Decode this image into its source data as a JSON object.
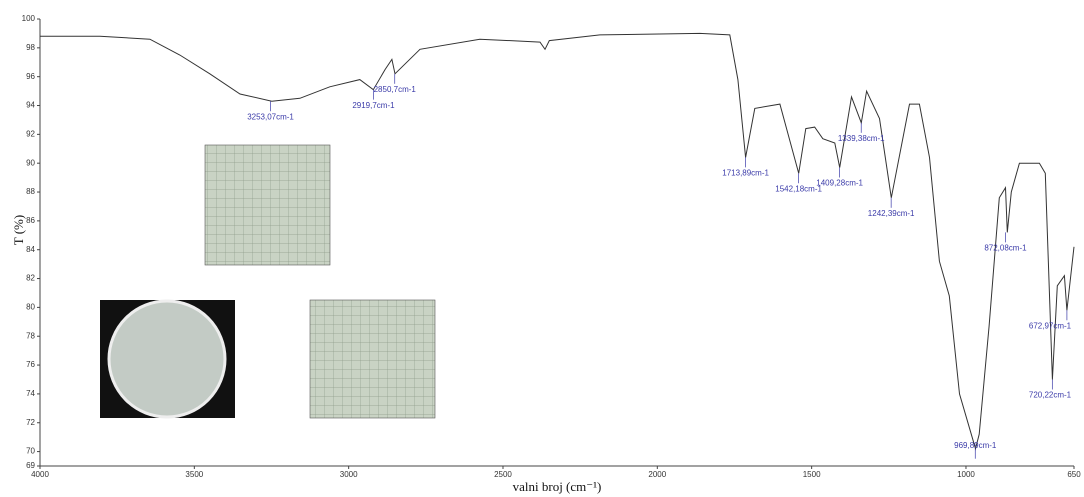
{
  "chart_data": {
    "type": "line",
    "ylabel": "T (%)",
    "xlabel": "valni broj (cm⁻¹)",
    "xlim": [
      4000,
      650
    ],
    "ylim": [
      69,
      100
    ],
    "xticks": [
      4000,
      3500,
      3000,
      2500,
      2000,
      1500,
      1000,
      650
    ],
    "yticks": [
      69,
      70,
      72,
      74,
      76,
      78,
      80,
      82,
      84,
      86,
      88,
      90,
      92,
      94,
      96,
      98,
      100
    ],
    "color": "#333333",
    "x": [
      4000,
      3806,
      3644,
      3547,
      3450,
      3352,
      3249,
      3158,
      3061,
      2964,
      2920,
      2882,
      2860,
      2850,
      2769,
      2575,
      2380,
      2364,
      2350,
      2186,
      1862,
      1765,
      1739,
      1714,
      1684,
      1603,
      1542,
      1519,
      1490,
      1464,
      1425,
      1409,
      1371,
      1339,
      1322,
      1280,
      1242,
      1183,
      1151,
      1118,
      1086,
      1054,
      1021,
      969,
      957,
      925,
      892,
      872,
      866,
      853,
      827,
      762,
      743,
      720,
      704,
      681,
      673,
      650
    ],
    "values": [
      98.8,
      98.8,
      98.6,
      97.5,
      96.2,
      94.8,
      94.3,
      94.5,
      95.3,
      95.8,
      95.1,
      96.5,
      97.2,
      96.2,
      97.9,
      98.6,
      98.4,
      97.9,
      98.5,
      98.9,
      99.0,
      98.9,
      95.8,
      90.4,
      93.8,
      94.1,
      89.3,
      92.4,
      92.5,
      91.7,
      91.4,
      89.7,
      94.6,
      92.8,
      95.0,
      93.1,
      87.6,
      94.1,
      94.1,
      90.4,
      83.2,
      80.8,
      74.0,
      70.2,
      71.2,
      78.7,
      87.6,
      88.3,
      85.2,
      88.0,
      90.0,
      90.0,
      89.3,
      75.0,
      81.5,
      82.2,
      79.8,
      84.2
    ],
    "annotations": [
      {
        "text": "3253,07cm-1",
        "x": 3253.07,
        "y": 94.3
      },
      {
        "text": "2919,7cm-1",
        "x": 2919.7,
        "y": 95.1
      },
      {
        "text": "2850,7cm-1",
        "x": 2850.7,
        "y": 96.2
      },
      {
        "text": "1713,89cm-1",
        "x": 1713.89,
        "y": 90.4
      },
      {
        "text": "1542,18cm-1",
        "x": 1542.18,
        "y": 89.3
      },
      {
        "text": "1409,28cm-1",
        "x": 1409.28,
        "y": 89.7
      },
      {
        "text": "1339,38cm-1",
        "x": 1339.38,
        "y": 92.8
      },
      {
        "text": "1242,39cm-1",
        "x": 1242.39,
        "y": 87.6
      },
      {
        "text": "969,89cm-1",
        "x": 969.89,
        "y": 70.2
      },
      {
        "text": "872,08cm-1",
        "x": 872.08,
        "y": 85.2
      },
      {
        "text": "720,22cm-1",
        "x": 720.22,
        "y": 75.0
      },
      {
        "text": "672,97cm-1",
        "x": 672.97,
        "y": 79.8
      }
    ]
  }
}
